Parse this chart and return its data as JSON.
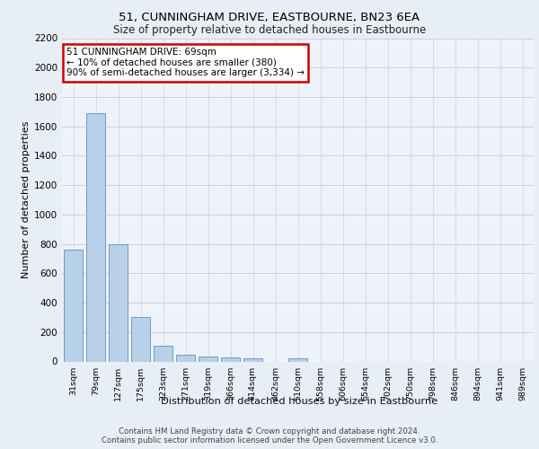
{
  "title1": "51, CUNNINGHAM DRIVE, EASTBOURNE, BN23 6EA",
  "title2": "Size of property relative to detached houses in Eastbourne",
  "xlabel": "Distribution of detached houses by size in Eastbourne",
  "ylabel": "Number of detached properties",
  "categories": [
    "31sqm",
    "79sqm",
    "127sqm",
    "175sqm",
    "223sqm",
    "271sqm",
    "319sqm",
    "366sqm",
    "414sqm",
    "462sqm",
    "510sqm",
    "558sqm",
    "606sqm",
    "654sqm",
    "702sqm",
    "750sqm",
    "798sqm",
    "846sqm",
    "894sqm",
    "941sqm",
    "989sqm"
  ],
  "values": [
    760,
    1690,
    795,
    300,
    110,
    45,
    33,
    26,
    22,
    0,
    22,
    0,
    0,
    0,
    0,
    0,
    0,
    0,
    0,
    0,
    0
  ],
  "bar_color": "#b8d0e8",
  "bar_edge_color": "#6090c0",
  "annotation_text": "51 CUNNINGHAM DRIVE: 69sqm\n← 10% of detached houses are smaller (380)\n90% of semi-detached houses are larger (3,334) →",
  "annotation_box_color": "#ffffff",
  "annotation_box_edge_color": "#cc0000",
  "ylim": [
    0,
    2200
  ],
  "yticks": [
    0,
    200,
    400,
    600,
    800,
    1000,
    1200,
    1400,
    1600,
    1800,
    2000,
    2200
  ],
  "footnote1": "Contains HM Land Registry data © Crown copyright and database right 2024.",
  "footnote2": "Contains public sector information licensed under the Open Government Licence v3.0.",
  "bg_color": "#e8eef6",
  "plot_bg_color": "#eef2f9"
}
